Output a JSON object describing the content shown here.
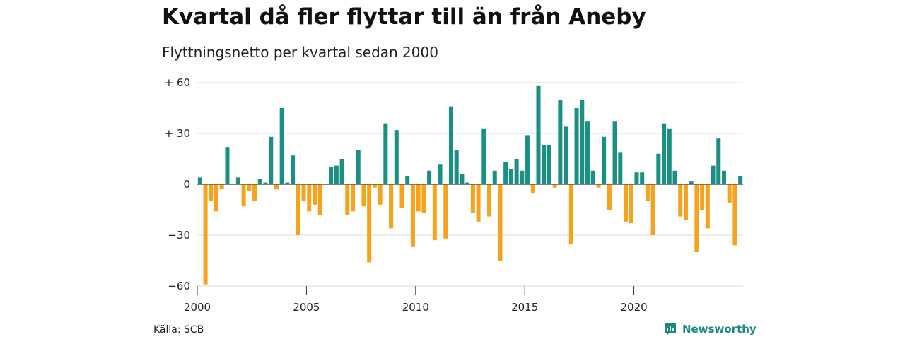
{
  "colors": {
    "positive": "#1a9082",
    "negative": "#f5a31c",
    "grid": "#dddddd",
    "axis": "#333333",
    "brand": "#1a8a7d"
  },
  "source": "Källa: SCB",
  "brand": {
    "name": "Newsworthy",
    "icon": "newsworthy-chart-icon"
  },
  "chart_data": {
    "type": "bar",
    "title": "Kvartal då fler flyttar till än från Aneby",
    "subtitle": "Flyttningsnetto per kvartal sedan 2000",
    "xlabel": "",
    "ylabel": "",
    "ylim": [
      -60,
      60
    ],
    "yticks": [
      {
        "value": 60,
        "label": "+ 60"
      },
      {
        "value": 30,
        "label": "+ 30"
      },
      {
        "value": 0,
        "label": "0"
      },
      {
        "value": -30,
        "label": "−30"
      },
      {
        "value": -60,
        "label": "−60"
      }
    ],
    "xticks": [
      "2000",
      "2005",
      "2010",
      "2015",
      "2020"
    ],
    "start": "2000 Q1",
    "frequency": "quarterly",
    "grid": true,
    "values": [
      4,
      -59,
      -10,
      -16,
      -3,
      22,
      0,
      4,
      -13,
      -4,
      -10,
      3,
      1,
      28,
      -3,
      45,
      1,
      17,
      -30,
      -10,
      -16,
      -12,
      -18,
      0,
      10,
      11,
      15,
      -18,
      -16,
      20,
      -13,
      -46,
      -2,
      -12,
      36,
      -26,
      32,
      -14,
      5,
      -37,
      -16,
      -17,
      8,
      -33,
      12,
      -32,
      46,
      20,
      6,
      1,
      -17,
      -22,
      33,
      -19,
      8,
      -45,
      13,
      9,
      15,
      8,
      29,
      -5,
      58,
      23,
      23,
      -2,
      50,
      34,
      -35,
      45,
      50,
      37,
      8,
      -2,
      28,
      -15,
      37,
      19,
      -22,
      -23,
      7,
      7,
      -10,
      -30,
      18,
      36,
      33,
      8,
      -19,
      -21,
      2,
      -40,
      -15,
      -26,
      11,
      27,
      8,
      -11,
      -36,
      5
    ]
  }
}
